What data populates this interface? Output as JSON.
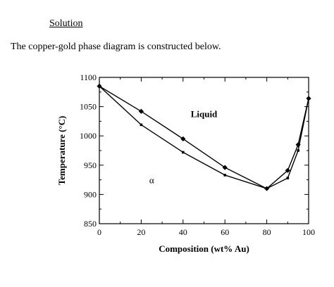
{
  "header": {
    "heading": "Solution",
    "intro": "The copper-gold phase diagram is constructed below."
  },
  "chart_data": {
    "type": "line",
    "xlabel": "Composition (wt% Au)",
    "ylabel": "Temperature (°C)",
    "xlim": [
      0,
      100
    ],
    "ylim": [
      850,
      1100
    ],
    "xticks": [
      0,
      20,
      40,
      60,
      80,
      100
    ],
    "yticks": [
      850,
      900,
      950,
      1000,
      1050,
      1100
    ],
    "xtick_labels": [
      "0",
      "20",
      "40",
      "60",
      "80",
      "100"
    ],
    "ytick_labels": [
      "850",
      "900",
      "950",
      "1000",
      "1050",
      "1100"
    ],
    "grid": false,
    "series": [
      {
        "marker": "diamond",
        "x": [
          0,
          20,
          40,
          60,
          80,
          90,
          95,
          100
        ],
        "y": [
          1085,
          1042,
          995,
          946,
          910,
          941,
          985,
          1064
        ]
      },
      {
        "marker": "small-square",
        "x": [
          0,
          20,
          40,
          60,
          80,
          90,
          95,
          100
        ],
        "y": [
          1085,
          1019,
          972,
          933,
          910,
          928,
          975,
          1064
        ]
      }
    ],
    "annotations": [
      {
        "text": "Liquid",
        "x": 50,
        "y": 1032,
        "bold": true
      },
      {
        "text": "α",
        "x": 25,
        "y": 919,
        "bold": false
      }
    ]
  }
}
